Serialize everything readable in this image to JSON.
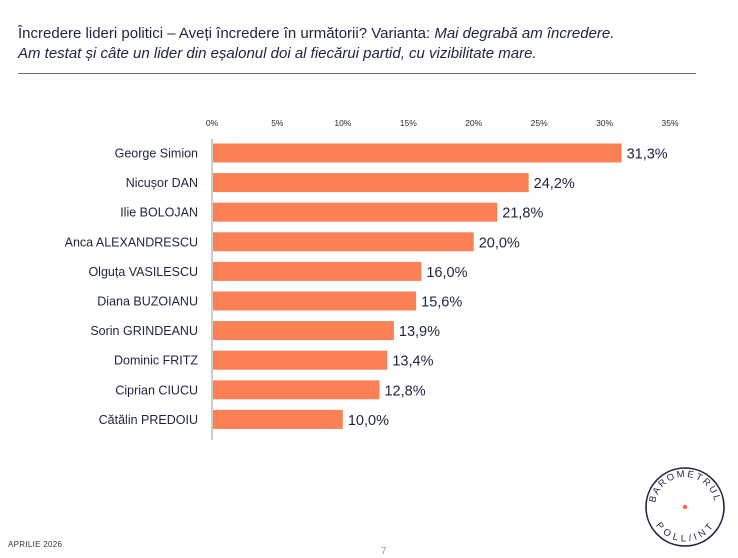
{
  "header": {
    "title_plain": "Încredere lideri politici – Aveți încredere în următorii? Varianta: ",
    "title_italic": "Mai degrabă am încredere.",
    "subtitle": "Am testat și câte un lider din eșalonul doi al fiecărui partid, cu vizibilitate mare."
  },
  "chart_data": {
    "type": "bar",
    "orientation": "horizontal",
    "categories": [
      "George Simion",
      "Nicușor DAN",
      "Ilie BOLOJAN",
      "Anca ALEXANDRESCU",
      "Olguța VASILESCU",
      "Diana BUZOIANU",
      "Sorin GRINDEANU",
      "Dominic FRITZ",
      "Ciprian CIUCU",
      "Cătălin PREDOIU"
    ],
    "values": [
      31.3,
      24.2,
      21.8,
      20.0,
      16.0,
      15.6,
      13.9,
      13.4,
      12.8,
      10.0
    ],
    "value_labels": [
      "31,3%",
      "24,2%",
      "21,8%",
      "20,0%",
      "16,0%",
      "15,6%",
      "13,9%",
      "13,4%",
      "12,8%",
      "10,0%"
    ],
    "xlim": [
      0,
      35
    ],
    "ticks": [
      0,
      5,
      10,
      15,
      20,
      25,
      30,
      35
    ],
    "tick_labels": [
      "0%",
      "5%",
      "10%",
      "15%",
      "20%",
      "25%",
      "30%",
      "35%"
    ],
    "axis_position": "top",
    "bar_color": "#fb8154",
    "grid": false
  },
  "footer": {
    "date": "APRILIE 2026",
    "page_number": "7"
  },
  "logo": {
    "text_top": "BAROMETRUL",
    "text_bottom": "POLL/INT",
    "dot_color": "#f26a3c"
  }
}
